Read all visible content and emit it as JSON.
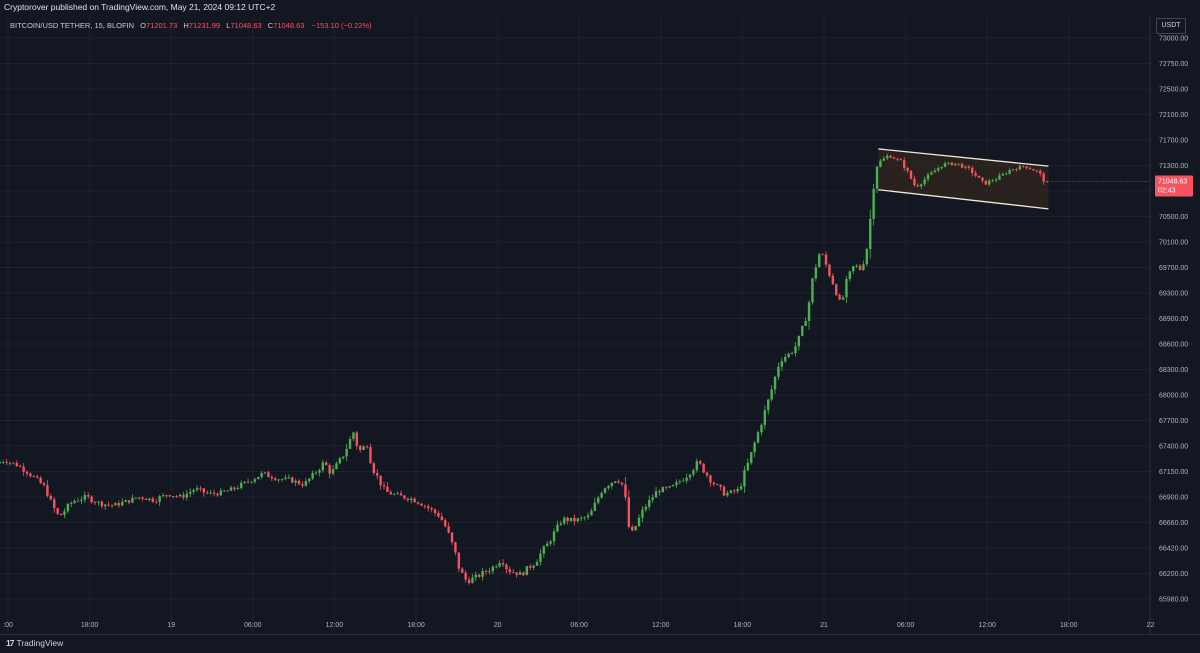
{
  "header": {
    "publisher_line": "Cryptorover published on TradingView.com, May 21, 2024 09:12 UTC+2"
  },
  "legend": {
    "symbol": "BITCOIN/USD TETHER, 15, BLOFIN",
    "open_label": "O",
    "open": "71201.73",
    "high_label": "H",
    "high": "71231.99",
    "low_label": "L",
    "low": "71048.63",
    "close_label": "C",
    "close": "71048.63",
    "change": "−153.10 (−0.22%)"
  },
  "price_axis": {
    "currency": "USDT",
    "current_price": "71048.63",
    "countdown": "02:43"
  },
  "footer": {
    "brand": "TradingView",
    "brand_mark": "17"
  },
  "colors": {
    "background": "#131722",
    "up": "#26a69a",
    "up_candle": "#4caf50",
    "down": "#f7525f",
    "grid": "#1e222d",
    "channel_line": "#f0e8d8",
    "channel_fill": "#3a2a1a"
  },
  "chart_data": {
    "type": "candlestick",
    "title": "",
    "xlabel": "",
    "ylabel": "",
    "y_ticks": [
      "73000.00",
      "72750.00",
      "72500.00",
      "72100.00",
      "71700.00",
      "71300.00",
      "70900.00",
      "70500.00",
      "70100.00",
      "69700.00",
      "69300.00",
      "68900.00",
      "68600.00",
      "68300.00",
      "68000.00",
      "67700.00",
      "67400.00",
      "67150.00",
      "66900.00",
      "66660.00",
      "66420.00",
      "66200.00",
      "65980.00"
    ],
    "x_ticks": [
      {
        "label": ":00",
        "hour": 12
      },
      {
        "label": "18:00",
        "hour": 18
      },
      {
        "label": "19",
        "hour": 24
      },
      {
        "label": "06:00",
        "hour": 30
      },
      {
        "label": "12:00",
        "hour": 36
      },
      {
        "label": "18:00",
        "hour": 42
      },
      {
        "label": "20",
        "hour": 48
      },
      {
        "label": "06:00",
        "hour": 54
      },
      {
        "label": "12:00",
        "hour": 60
      },
      {
        "label": "18:00",
        "hour": 66
      },
      {
        "label": "21",
        "hour": 72
      },
      {
        "label": "06:00",
        "hour": 78
      },
      {
        "label": "12:00",
        "hour": 84
      },
      {
        "label": "18:00",
        "hour": 90
      },
      {
        "label": "22",
        "hour": 96
      }
    ],
    "price_path": [
      [
        11.4,
        67230
      ],
      [
        12,
        67260
      ],
      [
        13,
        67210
      ],
      [
        14,
        67110
      ],
      [
        15,
        66990
      ],
      [
        15.5,
        66820
      ],
      [
        16,
        66710
      ],
      [
        17,
        66860
      ],
      [
        18,
        66900
      ],
      [
        19,
        66840
      ],
      [
        20,
        66820
      ],
      [
        21,
        66860
      ],
      [
        22,
        66900
      ],
      [
        23,
        66870
      ],
      [
        24,
        66930
      ],
      [
        25,
        66900
      ],
      [
        26,
        66980
      ],
      [
        27,
        66930
      ],
      [
        28,
        66940
      ],
      [
        29,
        66990
      ],
      [
        30,
        67060
      ],
      [
        31,
        67130
      ],
      [
        32,
        67080
      ],
      [
        33,
        67070
      ],
      [
        34,
        67020
      ],
      [
        35,
        67160
      ],
      [
        35.5,
        67240
      ],
      [
        36,
        67130
      ],
      [
        37,
        67330
      ],
      [
        37.7,
        67580
      ],
      [
        38,
        67340
      ],
      [
        38.7,
        67420
      ],
      [
        39,
        67200
      ],
      [
        40,
        66950
      ],
      [
        41,
        66910
      ],
      [
        42,
        66880
      ],
      [
        43,
        66810
      ],
      [
        44,
        66720
      ],
      [
        44.5,
        66600
      ],
      [
        45,
        66420
      ],
      [
        45.5,
        66220
      ],
      [
        46,
        66130
      ],
      [
        47,
        66190
      ],
      [
        48,
        66260
      ],
      [
        48.5,
        66330
      ],
      [
        49,
        66230
      ],
      [
        50,
        66190
      ],
      [
        51,
        66300
      ],
      [
        52,
        66470
      ],
      [
        53,
        66690
      ],
      [
        54,
        66680
      ],
      [
        55,
        66720
      ],
      [
        56,
        66990
      ],
      [
        57,
        67080
      ],
      [
        57.5,
        67010
      ],
      [
        58,
        66520
      ],
      [
        59,
        66790
      ],
      [
        60,
        66960
      ],
      [
        61,
        66990
      ],
      [
        62,
        67090
      ],
      [
        63,
        67240
      ],
      [
        64,
        67050
      ],
      [
        65,
        66930
      ],
      [
        66,
        66970
      ],
      [
        67,
        67360
      ],
      [
        68,
        67850
      ],
      [
        68.5,
        68120
      ],
      [
        69,
        68410
      ],
      [
        70,
        68520
      ],
      [
        70.5,
        68700
      ],
      [
        71,
        68960
      ],
      [
        71.5,
        69620
      ],
      [
        72,
        69980
      ],
      [
        72.5,
        69680
      ],
      [
        73,
        69400
      ],
      [
        73.5,
        69100
      ],
      [
        74,
        69550
      ],
      [
        74.5,
        69750
      ],
      [
        75,
        69650
      ],
      [
        75.5,
        70100
      ],
      [
        76,
        71300
      ],
      [
        77,
        71460
      ],
      [
        78,
        71350
      ],
      [
        79,
        70960
      ],
      [
        80,
        71150
      ],
      [
        81,
        71320
      ],
      [
        82,
        71330
      ],
      [
        83,
        71230
      ],
      [
        84,
        71010
      ],
      [
        85,
        71100
      ],
      [
        86,
        71240
      ],
      [
        87,
        71290
      ],
      [
        88,
        71200
      ],
      [
        88.5,
        71048
      ]
    ],
    "channel": {
      "upper": [
        [
          76,
          71560
        ],
        [
          88.5,
          71290
        ]
      ],
      "lower": [
        [
          76,
          70920
        ],
        [
          88.5,
          70620
        ]
      ]
    },
    "last_price": 71048.63
  }
}
